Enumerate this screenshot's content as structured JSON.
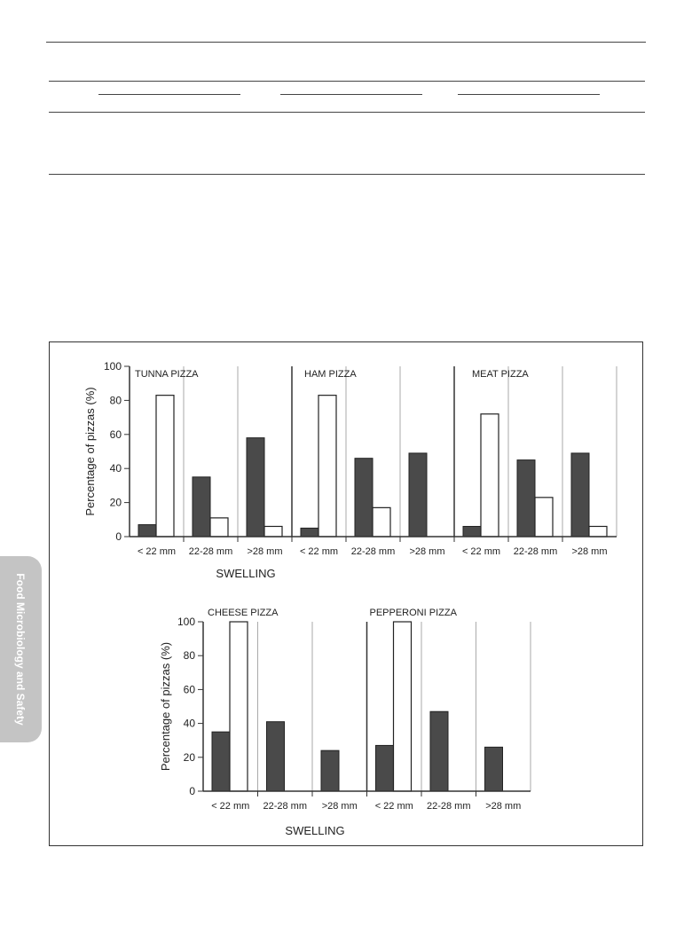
{
  "side_tab": {
    "label": "Food Microbiology and Safety"
  },
  "colors": {
    "filled_bar": "#4a4a4a",
    "open_bar": "#ffffff",
    "axis": "#333333",
    "divider": "#aaaaaa"
  },
  "chart_data": [
    {
      "type": "bar",
      "ylabel": "Percentage of pizzas (%)",
      "xlabel": "SWELLING",
      "ylim": [
        0,
        100
      ],
      "yticks": [
        0,
        20,
        40,
        60,
        80,
        100
      ],
      "groups": [
        {
          "name": "TUNNA PIZZA",
          "categories": [
            "< 22 mm",
            "22-28 mm",
            ">28 mm"
          ],
          "filled": [
            7,
            35,
            58
          ],
          "open": [
            83,
            11,
            6
          ]
        },
        {
          "name": "HAM PIZZA",
          "categories": [
            "< 22 mm",
            "22-28 mm",
            ">28 mm"
          ],
          "filled": [
            5,
            46,
            49
          ],
          "open": [
            83,
            17,
            0
          ]
        },
        {
          "name": "MEAT  PIZZA",
          "categories": [
            "< 22 mm",
            "22-28 mm",
            ">28 mm"
          ],
          "filled": [
            6,
            45,
            49
          ],
          "open": [
            72,
            23,
            6
          ]
        }
      ]
    },
    {
      "type": "bar",
      "ylabel": "Percentage of pizzas (%)",
      "xlabel": "SWELLING",
      "ylim": [
        0,
        100
      ],
      "yticks": [
        0,
        20,
        40,
        60,
        80,
        100
      ],
      "groups": [
        {
          "name": "CHEESE PIZZA",
          "categories": [
            "< 22 mm",
            "22-28 mm",
            ">28 mm"
          ],
          "filled": [
            35,
            41,
            24
          ],
          "open": [
            100,
            0,
            0
          ]
        },
        {
          "name": "PEPPERONI PIZZA",
          "categories": [
            "< 22 mm",
            "22-28 mm",
            ">28 mm"
          ],
          "filled": [
            27,
            47,
            26
          ],
          "open": [
            100,
            0,
            0
          ]
        }
      ]
    }
  ]
}
